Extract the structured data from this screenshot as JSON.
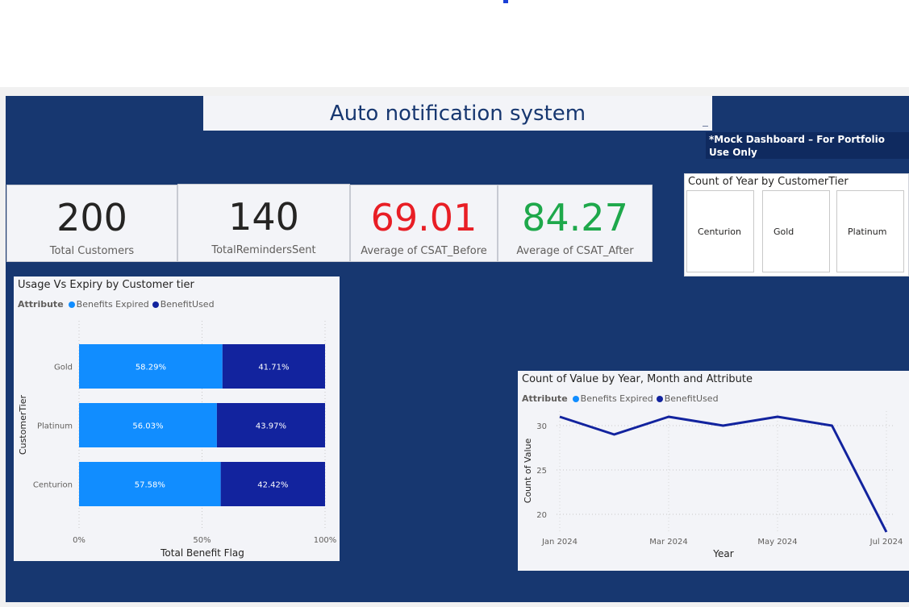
{
  "header": {
    "title": "Auto notification system",
    "note": "*Mock Dashboard – For Portfolio Use Only"
  },
  "kpis": [
    {
      "value": "200",
      "label": "Total Customers",
      "color": "#252423"
    },
    {
      "value": "140",
      "label": "TotalRemindersSent",
      "color": "#252423"
    },
    {
      "value": "69.01",
      "label": "Average of CSAT_Before",
      "color": "#e81e25"
    },
    {
      "value": "84.27",
      "label": "Average of CSAT_After",
      "color": "#1ea84b"
    }
  ],
  "slicer": {
    "title": "Count of Year by CustomerTier",
    "options": [
      "Centurion",
      "Gold",
      "Platinum"
    ]
  },
  "colors": {
    "report_bg": "#173770",
    "benefits_expired": "#118dff",
    "benefit_used": "#12239e",
    "card_bg": "#f3f4f8"
  },
  "chart_data": [
    {
      "type": "bar",
      "orientation": "horizontal",
      "stacked": "100%",
      "title": "Usage Vs Expiry by Customer tier",
      "legend_title": "Attribute",
      "legend_position": "top-left",
      "categories": [
        "Gold",
        "Platinum",
        "Centurion"
      ],
      "series": [
        {
          "name": "Benefits Expired",
          "values": [
            58.29,
            56.03,
            57.58
          ],
          "labels": [
            "58.29%",
            "56.03%",
            "57.58%"
          ],
          "color": "#118dff"
        },
        {
          "name": "BenefitUsed",
          "values": [
            41.71,
            43.97,
            42.42
          ],
          "labels": [
            "41.71%",
            "43.97%",
            "42.42%"
          ],
          "color": "#12239e"
        }
      ],
      "xlabel": "Total Benefit Flag",
      "ylabel": "CustomerTier",
      "xticks": [
        "0%",
        "50%",
        "100%"
      ],
      "xlim": [
        0,
        100
      ],
      "grid": true
    },
    {
      "type": "line",
      "title": "Count of Value by Year, Month and Attribute",
      "legend_title": "Attribute",
      "legend_position": "top-left",
      "legend": [
        {
          "name": "Benefits Expired",
          "color": "#118dff"
        },
        {
          "name": "BenefitUsed",
          "color": "#12239e"
        }
      ],
      "x": [
        "2024-01",
        "2024-02",
        "2024-03",
        "2024-04",
        "2024-05",
        "2024-06",
        "2024-07"
      ],
      "series": [
        {
          "values": [
            31,
            29,
            31,
            30,
            31,
            30,
            18
          ],
          "color": "#12239e"
        }
      ],
      "xticks": [
        "Jan 2024",
        "Mar 2024",
        "May 2024",
        "Jul 2024"
      ],
      "yticks": [
        "20",
        "25",
        "30"
      ],
      "xlabel": "Year",
      "ylabel": "Count of Value",
      "ylim": [
        18,
        31
      ],
      "grid": true
    }
  ]
}
